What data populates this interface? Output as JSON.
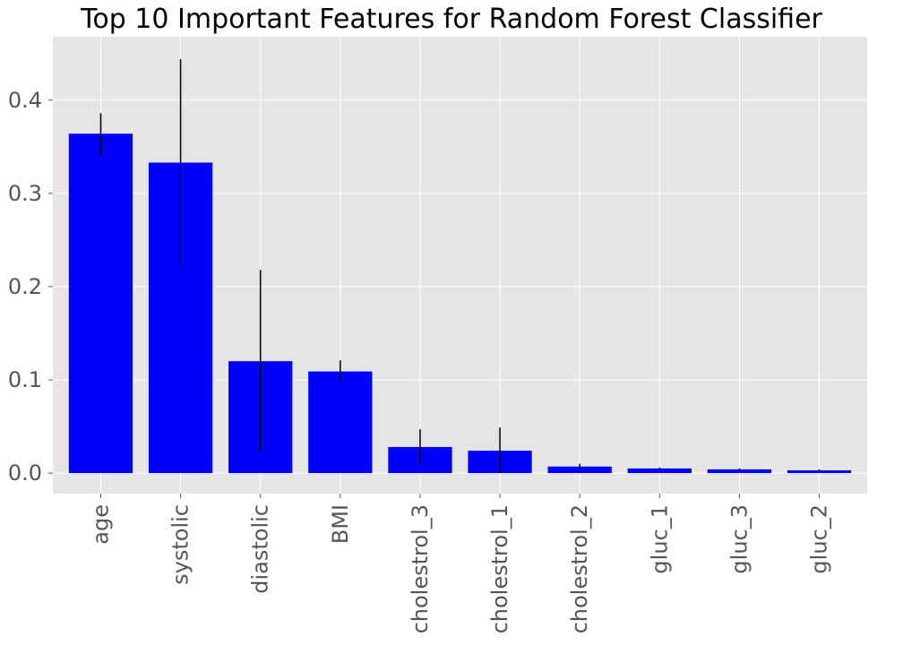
{
  "chart_data": {
    "type": "bar",
    "title": "Top 10 Important Features for Random Forest Classifier",
    "xlabel": "",
    "ylabel": "",
    "categories": [
      "age",
      "systolic",
      "diastolic",
      "BMI",
      "cholestrol_3",
      "cholestrol_1",
      "cholestrol_2",
      "gluc_1",
      "gluc_3",
      "gluc_2"
    ],
    "values": [
      0.364,
      0.333,
      0.12,
      0.109,
      0.028,
      0.024,
      0.007,
      0.005,
      0.004,
      0.003
    ],
    "error": [
      0.022,
      0.111,
      0.098,
      0.012,
      0.019,
      0.025,
      0.003,
      0.001,
      0.001,
      0.001
    ],
    "ylim": [
      -0.022,
      0.468
    ],
    "yticks": [
      0.0,
      0.1,
      0.2,
      0.3,
      0.4
    ],
    "ytick_labels": [
      "0.0",
      "0.1",
      "0.2",
      "0.3",
      "0.4"
    ],
    "grid": true,
    "style": "ggplot",
    "colors": {
      "bar": "#0000ff",
      "errorbar": "#000000",
      "plot_background": "#e5e5e5",
      "grid": "#ffffff",
      "tick_label": "#555555",
      "title": "#000000"
    }
  }
}
